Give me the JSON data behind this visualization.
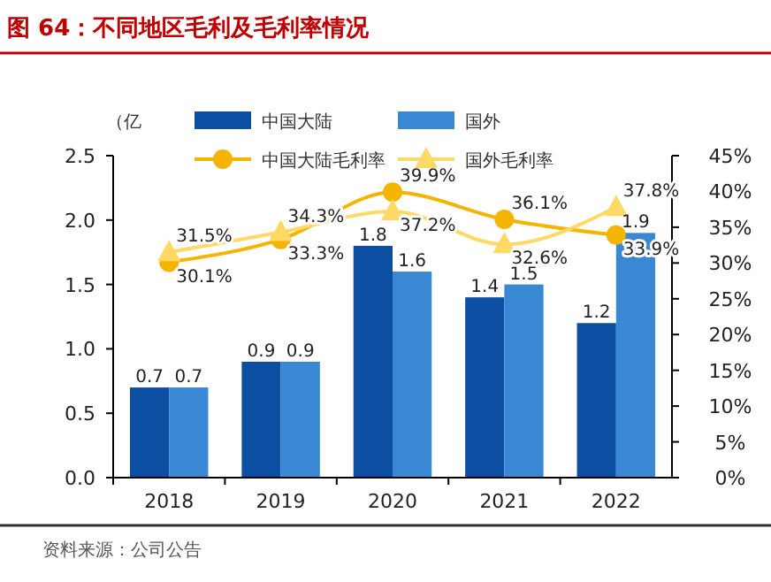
{
  "chart_data": {
    "type": "bar",
    "title": "图 64：不同地区毛利及毛利率情况",
    "ylabel": "（亿",
    "categories": [
      "2018",
      "2019",
      "2020",
      "2021",
      "2022"
    ],
    "series": [
      {
        "name": "中国大陆",
        "color": "#0b4ea2",
        "values": [
          0.7,
          0.9,
          1.8,
          1.4,
          1.2
        ],
        "value_labels": [
          "0.7",
          "0.9",
          "1.8",
          "1.4",
          "1.2"
        ]
      },
      {
        "name": "国外",
        "color": "#3a88d4",
        "values": [
          0.7,
          0.9,
          1.6,
          1.5,
          1.9
        ],
        "value_labels": [
          "0.7",
          "0.9",
          "1.6",
          "1.5",
          "1.9"
        ]
      },
      {
        "name": "中国大陆毛利率",
        "type": "line",
        "axis": "y2",
        "marker": "circle",
        "color": "#f5b400",
        "values": [
          30.1,
          33.3,
          39.9,
          36.1,
          33.9
        ],
        "value_labels": [
          "30.1%",
          "33.3%",
          "39.9%",
          "36.1%",
          "33.9%"
        ]
      },
      {
        "name": "国外毛利率",
        "type": "line",
        "axis": "y2",
        "marker": "triangle",
        "color": "#ffd966",
        "values": [
          31.5,
          34.3,
          37.2,
          32.6,
          37.8
        ],
        "value_labels": [
          "31.5%",
          "34.3%",
          "37.2%",
          "32.6%",
          "37.8%"
        ]
      }
    ],
    "ylim": [
      0,
      2.5
    ],
    "yticks": [
      {
        "value": 0,
        "label": "0.0"
      },
      {
        "value": 0.5,
        "label": "0.5"
      },
      {
        "value": 1,
        "label": "1.0"
      },
      {
        "value": 1.5,
        "label": "1.5"
      },
      {
        "value": 2,
        "label": "2.0"
      },
      {
        "value": 2.5,
        "label": "2.5"
      }
    ],
    "y2lim": [
      0,
      45
    ],
    "y2ticks": [
      {
        "value": 0,
        "label": "0%"
      },
      {
        "value": 5,
        "label": "5%"
      },
      {
        "value": 10,
        "label": "10%"
      },
      {
        "value": 15,
        "label": "15%"
      },
      {
        "value": 20,
        "label": "20%"
      },
      {
        "value": 25,
        "label": "25%"
      },
      {
        "value": 30,
        "label": "30%"
      },
      {
        "value": 35,
        "label": "35%"
      },
      {
        "value": 40,
        "label": "40%"
      },
      {
        "value": 45,
        "label": "45%"
      }
    ],
    "grid": false,
    "legend": "top",
    "annotations": [
      "资料来源：公司公告"
    ]
  }
}
